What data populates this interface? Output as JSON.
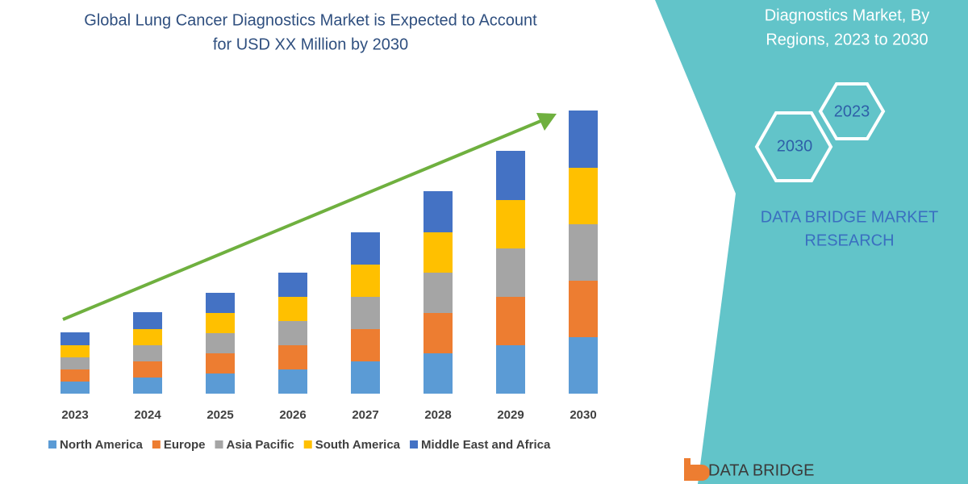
{
  "chart_data": {
    "type": "stacked_bar",
    "title": [
      "Global Lung Cancer Diagnostics Market is Expected to Account",
      "for USD XX Million by 2030"
    ],
    "categories": [
      "2023",
      "2024",
      "2025",
      "2026",
      "2027",
      "2028",
      "2029",
      "2030"
    ],
    "series": [
      {
        "name": "North America",
        "color": "#5b9bd5",
        "values": [
          15,
          20,
          25,
          30,
          40,
          50,
          60,
          70
        ]
      },
      {
        "name": "Europe",
        "color": "#ed7d31",
        "values": [
          15,
          20,
          25,
          30,
          40,
          50,
          60,
          70
        ]
      },
      {
        "name": "Asia Pacific",
        "color": "#a5a5a5",
        "values": [
          15,
          20,
          25,
          30,
          40,
          50,
          60,
          70
        ]
      },
      {
        "name": "South America",
        "color": "#ffc000",
        "values": [
          15,
          20,
          25,
          30,
          40,
          50,
          60,
          70
        ]
      },
      {
        "name": "Middle East and Africa",
        "color": "#4472c4",
        "values": [
          16,
          21,
          25,
          30,
          40,
          51,
          61,
          71
        ]
      }
    ],
    "ylim": [
      0,
      360
    ],
    "legend": "bottom"
  },
  "panel": {
    "heading": [
      "Diagnostics Market, By",
      "Regions, 2023 to 2030"
    ],
    "hexagons": [
      "2023",
      "2030"
    ],
    "brand": [
      "DATA BRIDGE MARKET",
      "RESEARCH"
    ]
  },
  "logo": "DATA BRIDGE"
}
